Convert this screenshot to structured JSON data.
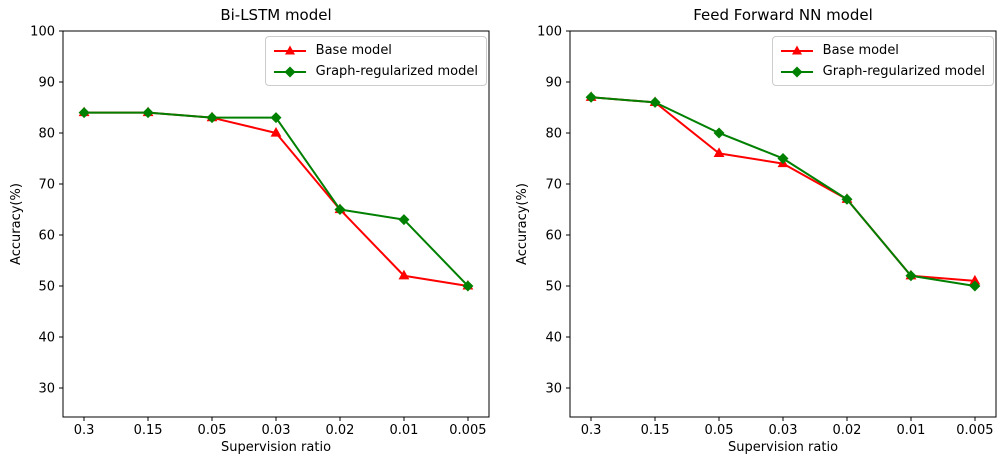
{
  "figure": {
    "background": "#ffffff",
    "text_color": "#000000",
    "spine_color": "#000000"
  },
  "chart_data": [
    {
      "type": "line",
      "title": "Bi-LSTM model",
      "xlabel": "Supervision ratio",
      "ylabel": "Accuracy(%)",
      "categories": [
        "0.3",
        "0.15",
        "0.05",
        "0.03",
        "0.02",
        "0.01",
        "0.005"
      ],
      "yticks": [
        100,
        90,
        80,
        70,
        60,
        50,
        40,
        30
      ],
      "ylim": [
        24.3,
        100
      ],
      "grid": false,
      "legend_position": "upper right",
      "series": [
        {
          "name": "Base model",
          "color": "#ff0000",
          "marker": "triangle-up",
          "values": [
            84,
            84,
            83,
            80,
            65,
            52,
            50
          ]
        },
        {
          "name": "Graph-regularized model",
          "color": "#008000",
          "marker": "diamond",
          "values": [
            84,
            84,
            83,
            83,
            65,
            63,
            50
          ]
        }
      ]
    },
    {
      "type": "line",
      "title": "Feed Forward NN model",
      "xlabel": "Supervision ratio",
      "ylabel": "Accuracy(%)",
      "categories": [
        "0.3",
        "0.15",
        "0.05",
        "0.03",
        "0.02",
        "0.01",
        "0.005"
      ],
      "yticks": [
        100,
        90,
        80,
        70,
        60,
        50,
        40,
        30
      ],
      "ylim": [
        24.3,
        100
      ],
      "grid": false,
      "legend_position": "upper right",
      "series": [
        {
          "name": "Base model",
          "color": "#ff0000",
          "marker": "triangle-up",
          "values": [
            87,
            86,
            76,
            74,
            67,
            52,
            51
          ]
        },
        {
          "name": "Graph-regularized model",
          "color": "#008000",
          "marker": "diamond",
          "values": [
            87,
            86,
            80,
            75,
            67,
            52,
            50
          ]
        }
      ]
    }
  ]
}
